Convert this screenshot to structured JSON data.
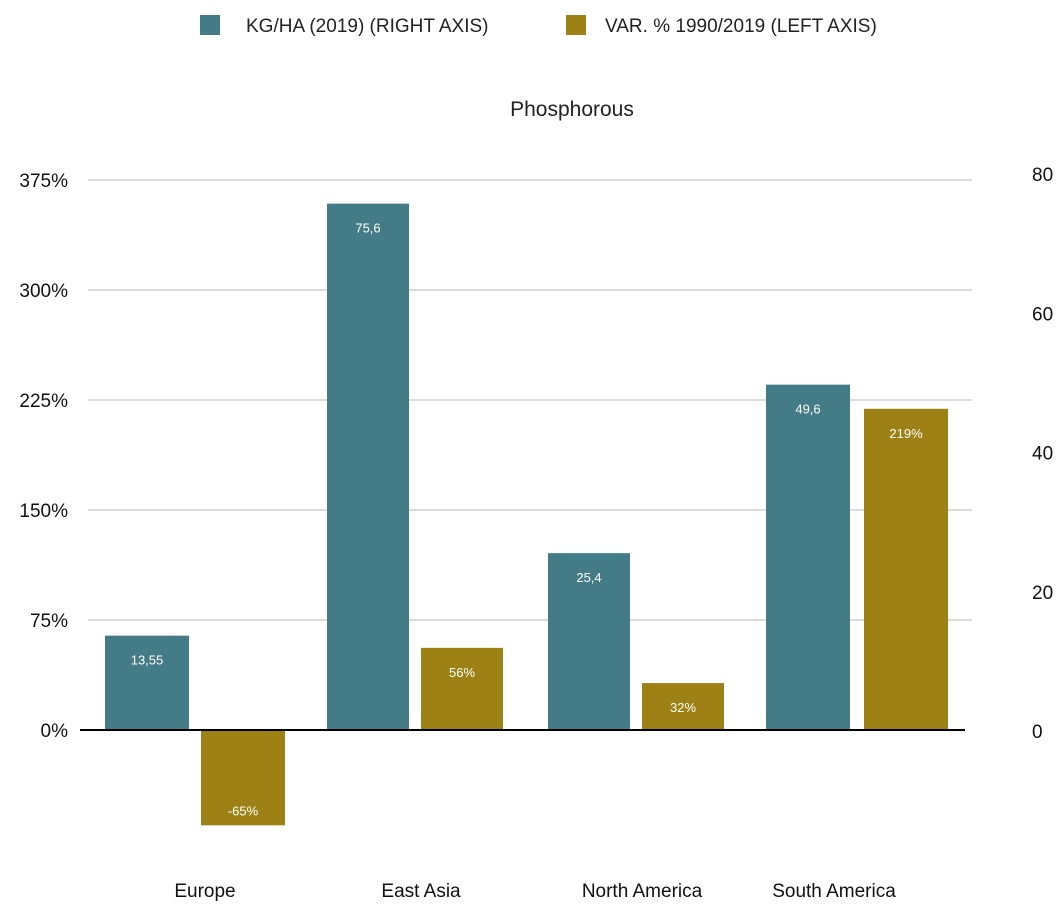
{
  "chart_data": {
    "type": "bar",
    "title": "Phosphorous",
    "categories": [
      "Europe",
      "East Asia",
      "North America",
      "South America"
    ],
    "series": [
      {
        "name": "KG/HA (2019) (RIGHT AXIS)",
        "axis": "right",
        "color": "#437c86",
        "values": [
          13.55,
          75.6,
          25.4,
          49.6
        ],
        "labels": [
          "13,55",
          "75,6",
          "25,4",
          "49,6"
        ]
      },
      {
        "name": "VAR. % 1990/2019 (LEFT AXIS)",
        "axis": "left",
        "color": "#9d8115",
        "values": [
          -65,
          56,
          32,
          219
        ],
        "labels": [
          "-65%",
          "56%",
          "32%",
          "219%"
        ]
      }
    ],
    "left_axis": {
      "range": [
        -90,
        375
      ],
      "ticks": [
        0,
        75,
        150,
        225,
        300,
        375
      ],
      "tick_labels": [
        "0%",
        "75%",
        "150%",
        "225%",
        "300%",
        "375%"
      ]
    },
    "right_axis": {
      "range": [
        0,
        80
      ],
      "ticks": [
        0,
        20,
        40,
        60,
        80
      ],
      "tick_labels": [
        "0",
        "20",
        "40",
        "60",
        "80"
      ]
    },
    "grid": true,
    "legend_position": "top-center",
    "gridline_color": "#cfcfcf",
    "zero_line_color": "#000000"
  }
}
